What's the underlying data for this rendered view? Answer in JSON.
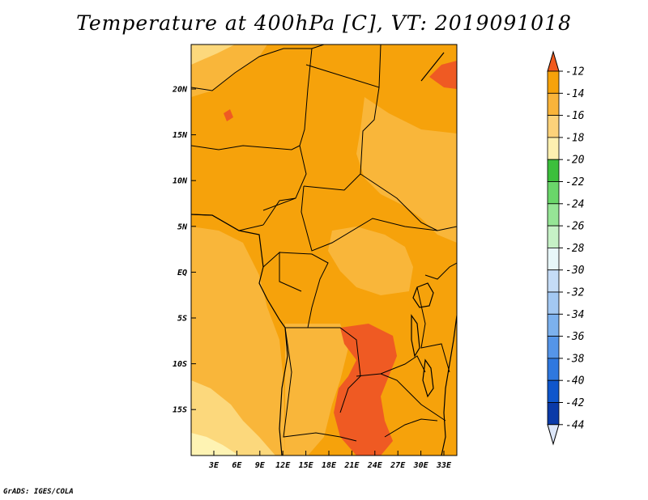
{
  "title": "Temperature at 400hPa [C], VT: 2019091018",
  "credit": "GrADS: IGES/COLA",
  "map": {
    "variable": "Temperature",
    "level": "400hPa",
    "units": "C",
    "valid_time": "2019091018",
    "lon_labels": [
      "3E",
      "6E",
      "9E",
      "12E",
      "15E",
      "18E",
      "21E",
      "24E",
      "27E",
      "30E",
      "33E"
    ],
    "lat_labels": [
      "20N",
      "15N",
      "10N",
      "5N",
      "EQ",
      "5S",
      "10S",
      "15S"
    ]
  },
  "colorbar": {
    "levels": [
      "-12",
      "-14",
      "-16",
      "-18",
      "-20",
      "-22",
      "-24",
      "-26",
      "-28",
      "-30",
      "-32",
      "-34",
      "-36",
      "-38",
      "-40",
      "-42",
      "-44"
    ],
    "colors": [
      "#f05a1e",
      "#f6a20a",
      "#f9b43a",
      "#fcd27a",
      "#fdf0b0",
      "#3cbf3c",
      "#6ad66a",
      "#96e596",
      "#c6f1c6",
      "#e8f7f9",
      "#c5dcf6",
      "#a3c8f2",
      "#7cb1ee",
      "#5595e8",
      "#2f78df",
      "#0f56cc",
      "#0a3aa8",
      "#0a1c80"
    ],
    "low_color": "#dce6f8"
  },
  "palette": {
    "t_minus13": "#ef5a23",
    "t_minus15": "#f6a20b",
    "t_minus17": "#f9b63a",
    "t_minus19": "#fcd87c",
    "t_minus21": "#fef3b3"
  }
}
